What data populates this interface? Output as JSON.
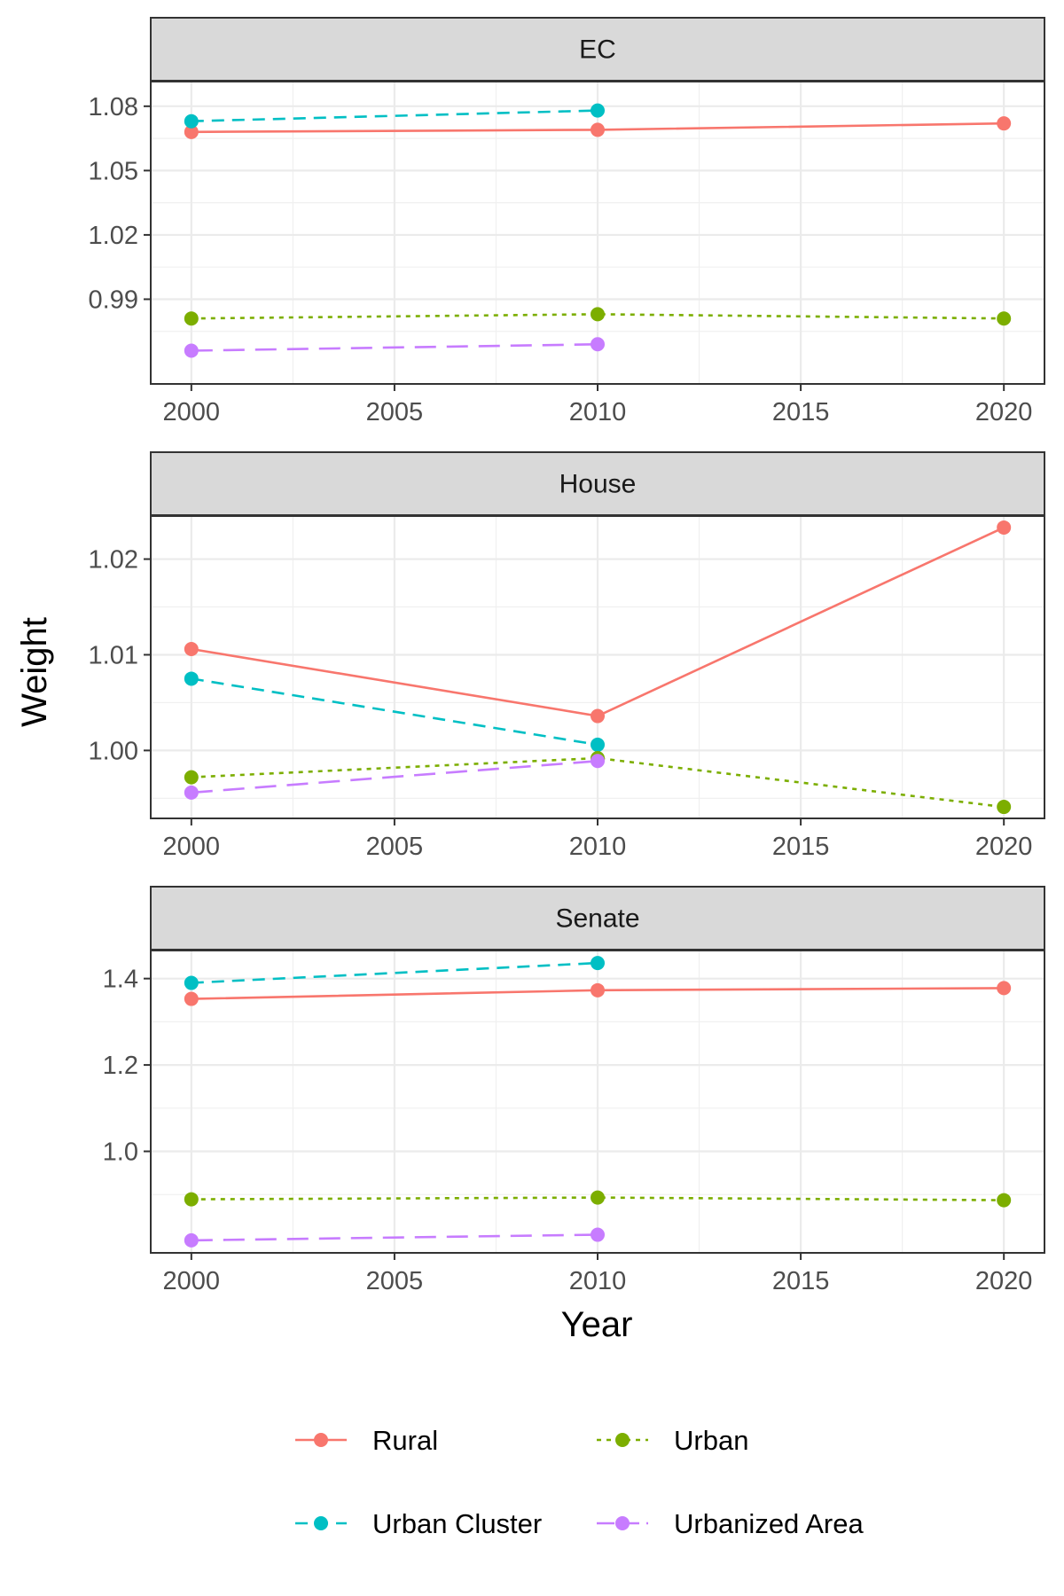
{
  "chart_data": {
    "type": "line",
    "facet_layout": "vertical, three panels, free y scales",
    "xlabel": "Year",
    "ylabel": "Weight",
    "x_ticks": [
      2000,
      2005,
      2010,
      2015,
      2020
    ],
    "xlim": [
      1999,
      2021
    ],
    "grid": true,
    "legend_position": "bottom",
    "series_styles": [
      {
        "name": "Rural",
        "color": "#F8766D",
        "dash": "solid"
      },
      {
        "name": "Urban",
        "color": "#7CAE00",
        "dash": "dotted"
      },
      {
        "name": "Urban Cluster",
        "color": "#00BFC4",
        "dash": "dashed"
      },
      {
        "name": "Urbanized Area",
        "color": "#C77CFF",
        "dash": "longdash"
      }
    ],
    "legend_order": [
      "Rural",
      "Urban",
      "Urban Cluster",
      "Urbanized Area"
    ],
    "panels": [
      {
        "strip": "EC",
        "ylim": [
          0.9505,
          1.0915
        ],
        "y_ticks": [
          0.99,
          1.02,
          1.05,
          1.08
        ],
        "series": [
          {
            "name": "Rural",
            "points": [
              [
                2000,
                1.068
              ],
              [
                2010,
                1.069
              ],
              [
                2020,
                1.072
              ]
            ]
          },
          {
            "name": "Urban Cluster",
            "points": [
              [
                2000,
                1.073
              ],
              [
                2010,
                1.078
              ]
            ]
          },
          {
            "name": "Urban",
            "points": [
              [
                2000,
                0.981
              ],
              [
                2010,
                0.983
              ],
              [
                2020,
                0.981
              ]
            ]
          },
          {
            "name": "Urbanized Area",
            "points": [
              [
                2000,
                0.966
              ],
              [
                2010,
                0.969
              ]
            ]
          }
        ]
      },
      {
        "strip": "House",
        "ylim": [
          0.9929,
          1.0245
        ],
        "y_ticks": [
          1.0,
          1.01,
          1.02
        ],
        "series": [
          {
            "name": "Rural",
            "points": [
              [
                2000,
                1.0106
              ],
              [
                2010,
                1.0036
              ],
              [
                2020,
                1.0233
              ]
            ]
          },
          {
            "name": "Urban Cluster",
            "points": [
              [
                2000,
                1.0075
              ],
              [
                2010,
                1.0006
              ]
            ]
          },
          {
            "name": "Urban",
            "points": [
              [
                2000,
                0.9972
              ],
              [
                2010,
                0.9992
              ],
              [
                2020,
                0.9941
              ]
            ]
          },
          {
            "name": "Urbanized Area",
            "points": [
              [
                2000,
                0.9956
              ],
              [
                2010,
                0.9989
              ]
            ]
          }
        ]
      },
      {
        "strip": "Senate",
        "ylim": [
          0.765,
          1.465
        ],
        "y_ticks": [
          1.0,
          1.2,
          1.4
        ],
        "series": [
          {
            "name": "Rural",
            "points": [
              [
                2000,
                1.353
              ],
              [
                2010,
                1.373
              ],
              [
                2020,
                1.378
              ]
            ]
          },
          {
            "name": "Urban Cluster",
            "points": [
              [
                2000,
                1.39
              ],
              [
                2010,
                1.436
              ]
            ]
          },
          {
            "name": "Urban",
            "points": [
              [
                2000,
                0.889
              ],
              [
                2010,
                0.893
              ],
              [
                2020,
                0.887
              ]
            ]
          },
          {
            "name": "Urbanized Area",
            "points": [
              [
                2000,
                0.794
              ],
              [
                2010,
                0.807
              ]
            ]
          }
        ]
      }
    ]
  }
}
